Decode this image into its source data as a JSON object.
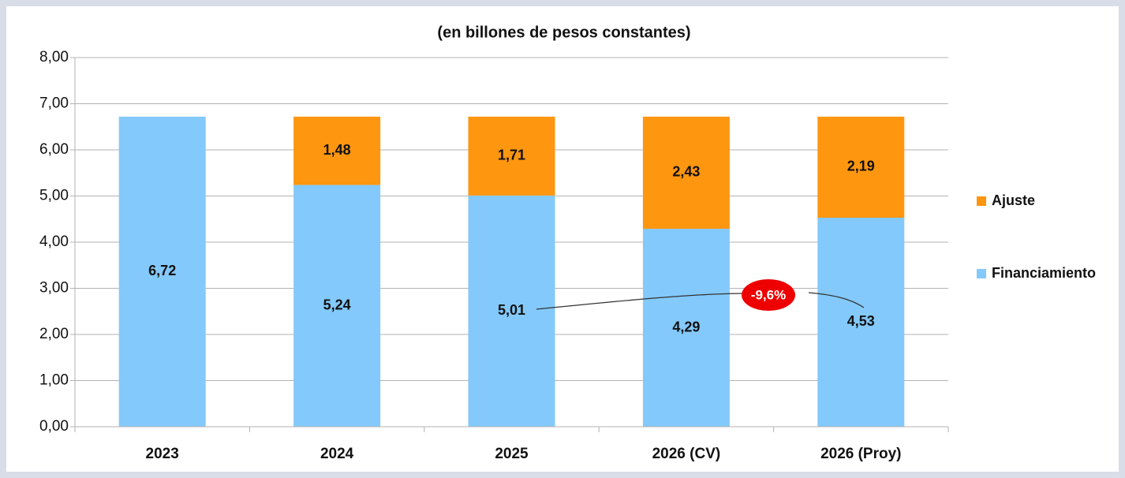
{
  "chart_data": {
    "type": "stacked_bar",
    "title": "(en billones de pesos constantes)",
    "categories": [
      "2023",
      "2024",
      "2025",
      "2026 (CV)",
      "2026 (Proy)"
    ],
    "series": [
      {
        "name": "Financiamiento",
        "color": "#83c9fb",
        "values": [
          6.72,
          5.24,
          5.01,
          4.29,
          4.53
        ],
        "value_labels": [
          "6,72",
          "5,24",
          "5,01",
          "4,29",
          "4,53"
        ]
      },
      {
        "name": "Ajuste",
        "color": "#ff960f",
        "values": [
          null,
          1.48,
          1.71,
          2.43,
          2.19
        ],
        "value_labels": [
          null,
          "1,48",
          "1,71",
          "2,43",
          "2,19"
        ]
      }
    ],
    "ylim": [
      0,
      8
    ],
    "yticks": [
      {
        "value": 0,
        "label": "0,00"
      },
      {
        "value": 1,
        "label": "1,00"
      },
      {
        "value": 2,
        "label": "2,00"
      },
      {
        "value": 3,
        "label": "3,00"
      },
      {
        "value": 4,
        "label": "4,00"
      },
      {
        "value": 5,
        "label": "5,00"
      },
      {
        "value": 6,
        "label": "6,00"
      },
      {
        "value": 7,
        "label": "7,00"
      },
      {
        "value": 8,
        "label": "8,00"
      }
    ],
    "grid": true,
    "legend": "right",
    "annotation": "-9,6%"
  }
}
